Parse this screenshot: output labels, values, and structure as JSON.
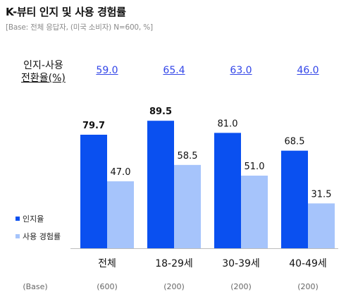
{
  "header": {
    "title": "K-뷰티 인지 및 사용 경험률",
    "subtitle": "[Base: 전체 응답자, (미국 소비자) N=600, %]"
  },
  "conversion": {
    "label_line1": "인지-사용",
    "label_line2": "전환율(%)",
    "values": [
      "59.0",
      "65.4",
      "63.0",
      "46.0"
    ]
  },
  "legend": {
    "awareness": "인지율",
    "usage": "사용 경험률"
  },
  "base": {
    "label": "(Base)",
    "values": [
      "(600)",
      "(200)",
      "(200)",
      "(200)"
    ]
  },
  "colors": {
    "awareness": "#0a50f0",
    "usage": "#a6c4fb",
    "link": "#3346e8"
  },
  "chart_data": {
    "type": "bar",
    "categories": [
      "전체",
      "18-29세",
      "30-39세",
      "40-49세"
    ],
    "series": [
      {
        "name": "인지율",
        "values": [
          79.7,
          89.5,
          81.0,
          68.5
        ]
      },
      {
        "name": "사용 경험률",
        "values": [
          47.0,
          58.5,
          51.0,
          31.5
        ]
      }
    ],
    "value_labels": {
      "awareness": [
        "79.7",
        "89.5",
        "81.0",
        "68.5"
      ],
      "usage": [
        "47.0",
        "58.5",
        "51.0",
        "31.5"
      ]
    },
    "bold_labels": [
      true,
      true,
      false,
      false
    ],
    "ylim": [
      0,
      100
    ],
    "grid": false,
    "legend_position": "left"
  }
}
